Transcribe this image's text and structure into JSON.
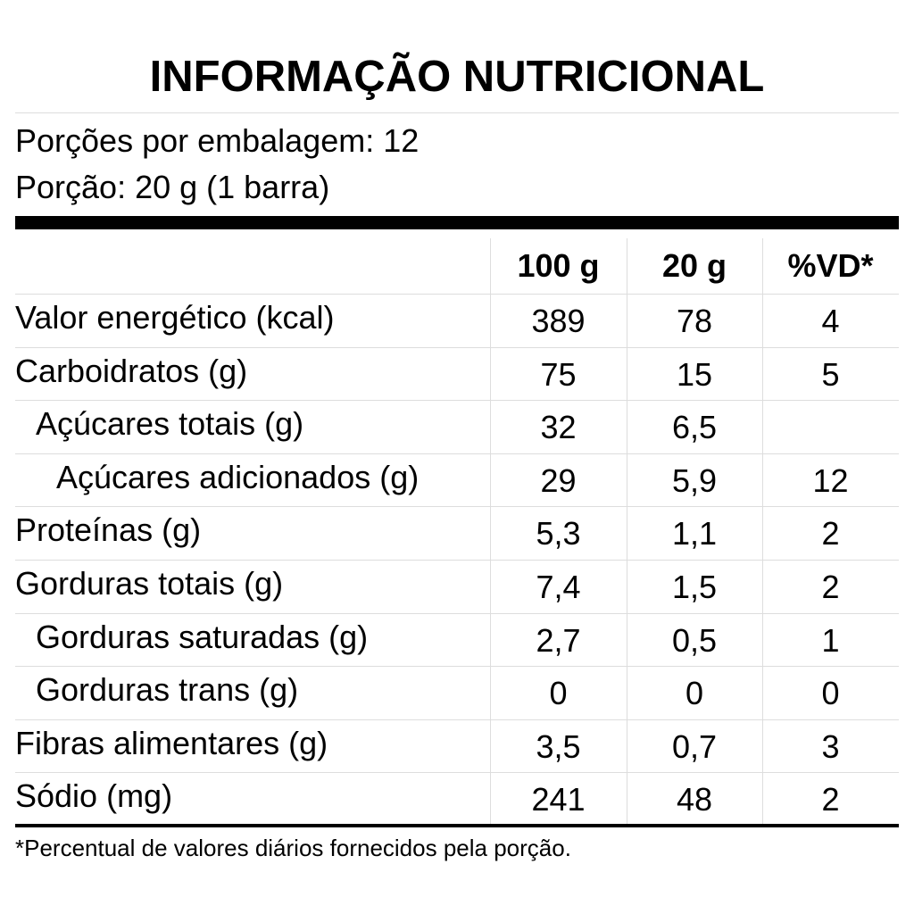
{
  "header": {
    "title": "INFORMAÇÃO NUTRICIONAL",
    "servings_per_package": "Porções por embalagem: 12",
    "serving_size": "Porção: 20 g (1 barra)"
  },
  "table": {
    "columns": [
      "100 g",
      "20 g",
      "%VD*"
    ],
    "rows": [
      [
        "Valor energético (kcal)",
        "389",
        "78",
        "4"
      ],
      [
        "Carboidratos (g)",
        "75",
        "15",
        "5"
      ],
      [
        "Açúcares totais (g)",
        "32",
        "6,5",
        null
      ],
      [
        "Açúcares adicionados (g)",
        "29",
        "5,9",
        "12"
      ],
      [
        "Proteínas (g)",
        "5,3",
        "1,1",
        "2"
      ],
      [
        "Gorduras totais (g)",
        "7,4",
        "1,5",
        "2"
      ],
      [
        "Gorduras saturadas (g)",
        "2,7",
        "0,5",
        "1"
      ],
      [
        "Gorduras trans (g)",
        "0",
        "0",
        "0"
      ],
      [
        "Fibras alimentares (g)",
        "3,5",
        "0,7",
        "3"
      ],
      [
        "Sódio (mg)",
        "241",
        "48",
        "2"
      ]
    ]
  },
  "footnote": "*Percentual de valores diários fornecidos pela porção."
}
